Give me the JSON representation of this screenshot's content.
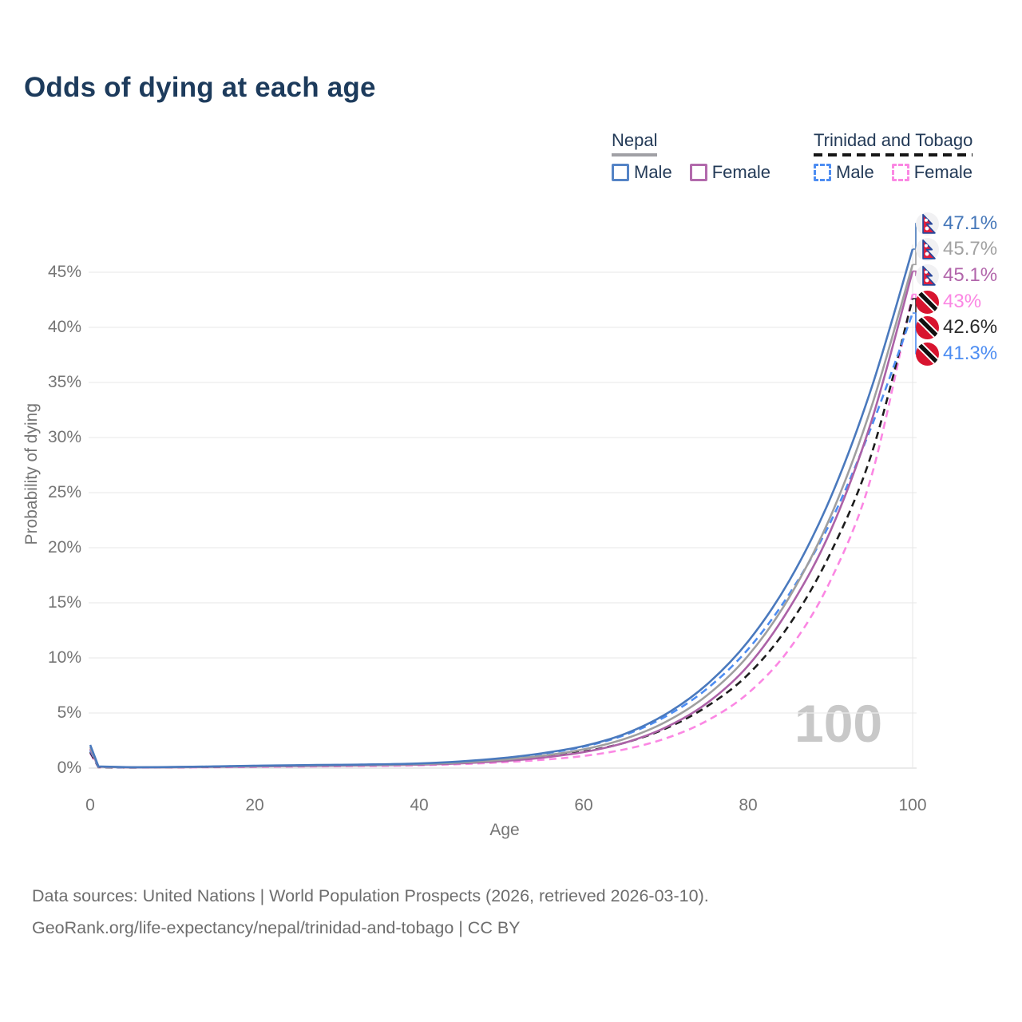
{
  "title": "Odds of dying at each age",
  "legend": {
    "groups": [
      {
        "country": "Nepal",
        "items": [
          {
            "label": "Male"
          },
          {
            "label": "Female"
          }
        ]
      },
      {
        "country": "Trinidad and Tobago",
        "items": [
          {
            "label": "Male"
          },
          {
            "label": "Female"
          }
        ]
      }
    ]
  },
  "watermark": "100",
  "footer": {
    "line1": "Data sources: United Nations | World Population Prospects (2026, retrieved 2026-03-10).",
    "line2": "GeoRank.org/life-expectancy/nepal/trinidad-and-tobago | CC BY"
  },
  "chart_data": {
    "type": "line",
    "title": "Odds of dying at each age",
    "xlabel": "Age",
    "ylabel": "Probability of dying",
    "xlim": [
      0,
      100
    ],
    "ylim_percent": [
      0,
      47.5
    ],
    "grid": "horizontal",
    "legend_position": "top-right",
    "xticks": [
      0,
      20,
      40,
      60,
      80,
      100
    ],
    "ytick_values": [
      0,
      5,
      10,
      15,
      20,
      25,
      30,
      35,
      40,
      45
    ],
    "ytick_labels": [
      "0%",
      "5%",
      "10%",
      "15%",
      "20%",
      "25%",
      "30%",
      "35%",
      "40%",
      "45%"
    ],
    "x_ages": [
      0,
      1,
      5,
      10,
      15,
      20,
      25,
      30,
      35,
      40,
      45,
      50,
      55,
      60,
      65,
      70,
      75,
      80,
      85,
      90,
      95,
      100
    ],
    "series": [
      {
        "name": "Nepal Male",
        "country": "Nepal",
        "sex": "Male",
        "style": "solid",
        "color": "#4a79bd",
        "values_percent": [
          2.1,
          0.15,
          0.08,
          0.1,
          0.15,
          0.22,
          0.26,
          0.3,
          0.34,
          0.42,
          0.6,
          0.9,
          1.35,
          2.0,
          3.1,
          4.9,
          7.6,
          11.5,
          17.0,
          24.5,
          34.5,
          47.1
        ]
      },
      {
        "name": "Nepal (all)",
        "country": "Nepal",
        "sex": "Both",
        "style": "solid",
        "color": "#9f9f9f",
        "values_percent": [
          1.9,
          0.13,
          0.07,
          0.09,
          0.13,
          0.18,
          0.22,
          0.25,
          0.29,
          0.36,
          0.5,
          0.75,
          1.12,
          1.7,
          2.65,
          4.2,
          6.6,
          10.2,
          15.5,
          22.8,
          32.8,
          45.7
        ]
      },
      {
        "name": "Nepal Female",
        "country": "Nepal",
        "sex": "Female",
        "style": "solid",
        "color": "#ac62a7",
        "values_percent": [
          1.75,
          0.12,
          0.06,
          0.08,
          0.11,
          0.15,
          0.18,
          0.21,
          0.25,
          0.31,
          0.43,
          0.63,
          0.95,
          1.45,
          2.3,
          3.7,
          5.9,
          9.3,
          14.5,
          21.5,
          31.5,
          45.1
        ]
      },
      {
        "name": "Trinidad and Tobago Male",
        "country": "Trinidad and Tobago",
        "sex": "Male",
        "style": "dashed",
        "color": "#4d8df2",
        "values_percent": [
          1.6,
          0.1,
          0.06,
          0.09,
          0.14,
          0.2,
          0.24,
          0.28,
          0.33,
          0.4,
          0.56,
          0.85,
          1.3,
          1.95,
          3.0,
          4.7,
          7.2,
          10.8,
          15.8,
          22.3,
          31.0,
          41.3
        ]
      },
      {
        "name": "Trinidad and Tobago (all)",
        "country": "Trinidad and Tobago",
        "sex": "Both",
        "style": "dashed",
        "color": "#1c1c1c",
        "values_percent": [
          1.45,
          0.09,
          0.05,
          0.08,
          0.11,
          0.16,
          0.19,
          0.23,
          0.27,
          0.33,
          0.45,
          0.68,
          1.0,
          1.5,
          2.3,
          3.6,
          5.6,
          8.5,
          13.0,
          19.5,
          28.5,
          42.6
        ]
      },
      {
        "name": "Trinidad and Tobago Female",
        "country": "Trinidad and Tobago",
        "sex": "Female",
        "style": "dashed",
        "color": "#fb87e3",
        "values_percent": [
          1.35,
          0.08,
          0.05,
          0.06,
          0.08,
          0.11,
          0.14,
          0.17,
          0.2,
          0.26,
          0.36,
          0.52,
          0.75,
          1.1,
          1.7,
          2.7,
          4.3,
          6.8,
          10.8,
          17.0,
          26.5,
          43.0
        ]
      }
    ],
    "end_labels": [
      {
        "text": "47.1%",
        "value_percent": 47.1,
        "color": "#4577b9",
        "flag": "nepal-flag-icon",
        "series": "Nepal Male"
      },
      {
        "text": "45.7%",
        "value_percent": 45.7,
        "color": "#a2a2a2",
        "flag": "nepal-flag-icon",
        "series": "Nepal (all)"
      },
      {
        "text": "45.1%",
        "value_percent": 45.1,
        "color": "#b266ab",
        "flag": "nepal-flag-icon",
        "series": "Nepal Female"
      },
      {
        "text": "43%",
        "value_percent": 43.0,
        "color": "#fb87e3",
        "flag": "trinidad-tobago-flag-icon",
        "series": "Trinidad and Tobago Female"
      },
      {
        "text": "42.6%",
        "value_percent": 42.6,
        "color": "#2b2b2b",
        "flag": "trinidad-tobago-flag-icon",
        "series": "Trinidad and Tobago (all)"
      },
      {
        "text": "41.3%",
        "value_percent": 41.3,
        "color": "#4d8df2",
        "flag": "trinidad-tobago-flag-icon",
        "series": "Trinidad and Tobago Male"
      }
    ]
  }
}
